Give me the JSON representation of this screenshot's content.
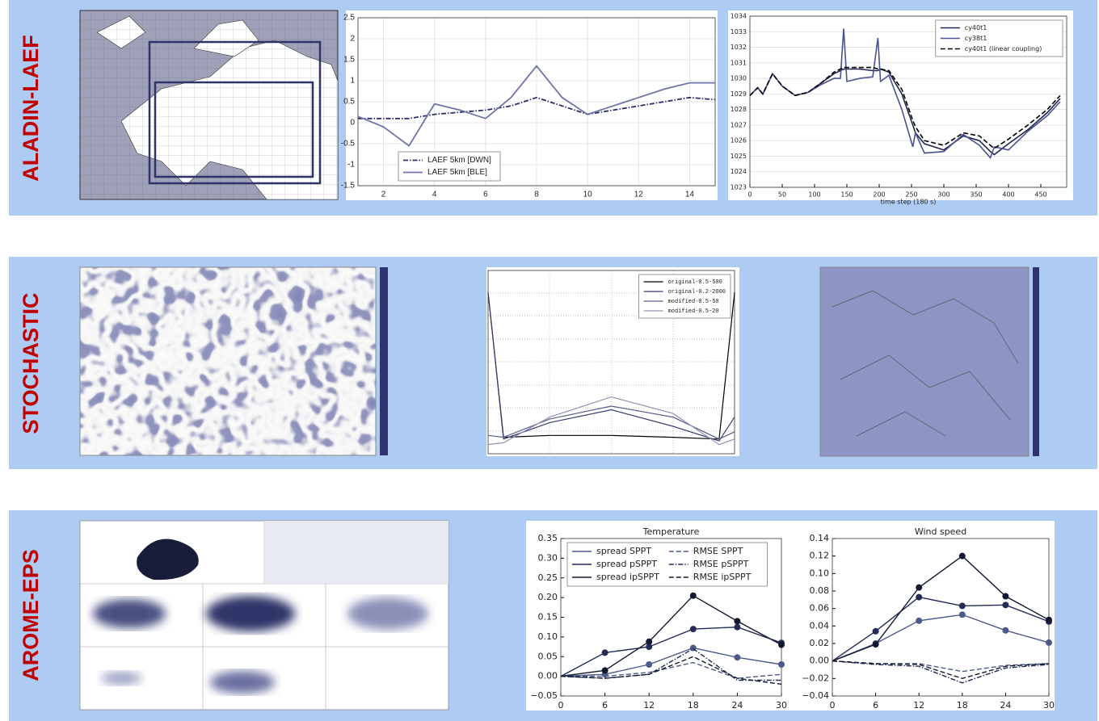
{
  "sections": [
    {
      "label": "ALADIN-LAEF"
    },
    {
      "label": "STOCHASTIC"
    },
    {
      "label": "AROME-EPS"
    }
  ],
  "chart_data": [
    {
      "type": "line",
      "x": [
        1,
        2,
        3,
        4,
        5,
        6,
        7,
        8,
        9,
        10,
        11,
        12,
        13,
        14,
        15
      ],
      "xlim": [
        1,
        15
      ],
      "xticks": [
        2,
        4,
        6,
        8,
        10,
        12,
        14
      ],
      "ylim": [
        -1.5,
        2.5
      ],
      "yticks": [
        -1.5,
        -1,
        -0.5,
        0,
        0.5,
        1,
        1.5,
        2,
        2.5
      ],
      "grid": true,
      "legend": "lower left",
      "series": [
        {
          "name": "LAEF 5km [DWN]",
          "color": "#2a2e6a",
          "dash": "dashdot",
          "values": [
            0.1,
            0.1,
            0.1,
            0.2,
            0.25,
            0.3,
            0.4,
            0.6,
            0.4,
            0.2,
            0.3,
            0.4,
            0.5,
            0.6,
            0.55
          ]
        },
        {
          "name": "LAEF 5km [BLE]",
          "color": "#6f75a8",
          "dash": "solid",
          "values": [
            0.15,
            -0.1,
            -0.55,
            0.45,
            0.3,
            0.1,
            0.6,
            1.35,
            0.6,
            0.2,
            0.4,
            0.6,
            0.8,
            0.95,
            0.95
          ]
        }
      ]
    },
    {
      "type": "line",
      "x": [
        0,
        12,
        20,
        35,
        50,
        70,
        90,
        110,
        130,
        140,
        145,
        150,
        170,
        190,
        198,
        202,
        215,
        235,
        252,
        256,
        270,
        300,
        330,
        355,
        372,
        378,
        400,
        430,
        460,
        480
      ],
      "xlim": [
        0,
        490
      ],
      "xticks": [
        0,
        50,
        100,
        150,
        200,
        250,
        300,
        350,
        400,
        450
      ],
      "ylim": [
        1023,
        1034
      ],
      "yticks": [
        1023,
        1024,
        1025,
        1026,
        1027,
        1028,
        1029,
        1030,
        1031,
        1032,
        1033,
        1034
      ],
      "grid": true,
      "legend": "upper right",
      "xlabel": "time step (180 s)",
      "series": [
        {
          "name": "cy40t1",
          "color": "#1f2550",
          "dash": "solid",
          "values": [
            1028.9,
            1029.4,
            1029.0,
            1030.3,
            1029.5,
            1028.9,
            1029.1,
            1029.7,
            1030.3,
            1030.5,
            1030.6,
            1030.6,
            1030.6,
            1030.5,
            1030.5,
            1030.6,
            1030.4,
            1029.0,
            1027.0,
            1026.5,
            1025.8,
            1025.4,
            1026.3,
            1026.0,
            1025.3,
            1025.1,
            1025.8,
            1026.7,
            1027.8,
            1028.7
          ]
        },
        {
          "name": "cy38t1",
          "color": "#4a5390",
          "dash": "solid",
          "values": [
            1028.9,
            1029.4,
            1029.0,
            1030.3,
            1029.5,
            1028.9,
            1029.1,
            1029.6,
            1030.0,
            1030.0,
            1033.2,
            1029.8,
            1030.0,
            1030.1,
            1032.6,
            1029.8,
            1030.2,
            1028.0,
            1025.6,
            1026.5,
            1025.2,
            1025.3,
            1026.4,
            1025.7,
            1024.9,
            1025.6,
            1025.4,
            1026.6,
            1027.6,
            1028.5
          ]
        },
        {
          "name": "cy40t1 (linear coupling)",
          "color": "#000000",
          "dash": "dashed",
          "values": [
            1028.9,
            1029.4,
            1029.0,
            1030.3,
            1029.5,
            1028.9,
            1029.1,
            1029.7,
            1030.4,
            1030.6,
            1030.7,
            1030.7,
            1030.7,
            1030.7,
            1030.6,
            1030.6,
            1030.5,
            1029.3,
            1027.3,
            1026.9,
            1026.0,
            1025.7,
            1026.5,
            1026.3,
            1025.7,
            1025.5,
            1026.1,
            1027.0,
            1028.0,
            1028.9
          ]
        }
      ]
    },
    {
      "type": "line",
      "x": [
        0,
        1,
        4,
        8,
        12,
        15,
        16
      ],
      "xlim": [
        0,
        16
      ],
      "ylim": [
        0,
        1
      ],
      "legend": "upper right",
      "series": [
        {
          "name": "original-0.5-500",
          "color": "#000000",
          "dash": "solid",
          "values": [
            0.88,
            0.09,
            0.1,
            0.1,
            0.09,
            0.08,
            0.88
          ]
        },
        {
          "name": "original-0.2-2000",
          "color": "#3a3f70",
          "dash": "solid",
          "values": [
            0.88,
            0.08,
            0.17,
            0.24,
            0.15,
            0.07,
            0.2
          ]
        },
        {
          "name": "modified-0.5-50",
          "color": "#5a5f8a",
          "dash": "solid",
          "values": [
            0.1,
            0.09,
            0.19,
            0.26,
            0.2,
            0.08,
            0.12
          ]
        },
        {
          "name": "modified-0.5-20",
          "color": "#9092b0",
          "dash": "solid",
          "values": [
            0.05,
            0.06,
            0.2,
            0.31,
            0.22,
            0.05,
            0.08
          ]
        }
      ]
    },
    {
      "type": "line",
      "title": "Temperature",
      "x": [
        0,
        6,
        12,
        18,
        24,
        30
      ],
      "xlim": [
        0,
        30
      ],
      "xticks": [
        0,
        6,
        12,
        18,
        24,
        30
      ],
      "ylim": [
        -0.05,
        0.35
      ],
      "yticks": [
        {
          "value": -0.05,
          "label": "−0.05"
        },
        {
          "value": 0,
          "label": "0.00"
        },
        {
          "value": 0.05,
          "label": "0.05"
        },
        {
          "value": 0.1,
          "label": "0.10"
        },
        {
          "value": 0.15,
          "label": "0.15"
        },
        {
          "value": 0.2,
          "label": "0.20"
        },
        {
          "value": 0.25,
          "label": "0.25"
        },
        {
          "value": 0.3,
          "label": "0.30"
        },
        {
          "value": 0.35,
          "label": "0.35"
        }
      ],
      "legend": "upper left",
      "series": [
        {
          "name": "spread SPPT",
          "color": "#4c5a8a",
          "dash": "solid",
          "marker": "o",
          "values": [
            0,
            0.005,
            0.03,
            0.072,
            0.048,
            0.03
          ]
        },
        {
          "name": "spread pSPPT",
          "color": "#222a55",
          "dash": "solid",
          "marker": "o",
          "values": [
            0,
            0.06,
            0.075,
            0.12,
            0.125,
            0.085
          ]
        },
        {
          "name": "spread ipSPPT",
          "color": "#121830",
          "dash": "solid",
          "marker": "o",
          "values": [
            0,
            0.015,
            0.088,
            0.205,
            0.14,
            0.08
          ]
        },
        {
          "name": "RMSE SPPT",
          "color": "#4c5a8a",
          "dash": "dashed",
          "values": [
            0,
            0,
            0.01,
            0.035,
            -0.005,
            0.005
          ]
        },
        {
          "name": "RMSE pSPPT",
          "color": "#222a55",
          "dash": "dashdot",
          "values": [
            0,
            -0.005,
            0.005,
            0.07,
            -0.01,
            -0.01
          ]
        },
        {
          "name": "RMSE ipSPPT",
          "color": "#121830",
          "dash": "dashed",
          "values": [
            0,
            -0.005,
            0.005,
            0.05,
            -0.005,
            -0.02
          ]
        }
      ]
    },
    {
      "type": "line",
      "title": "Wind speed",
      "x": [
        0,
        6,
        12,
        18,
        24,
        30
      ],
      "xlim": [
        0,
        30
      ],
      "xticks": [
        0,
        6,
        12,
        18,
        24,
        30
      ],
      "ylim": [
        -0.04,
        0.14
      ],
      "yticks": [
        {
          "value": -0.04,
          "label": "−0.04"
        },
        {
          "value": -0.02,
          "label": "−0.02"
        },
        {
          "value": 0,
          "label": "0.00"
        },
        {
          "value": 0.02,
          "label": "0.02"
        },
        {
          "value": 0.04,
          "label": "0.04"
        },
        {
          "value": 0.06,
          "label": "0.06"
        },
        {
          "value": 0.08,
          "label": "0.08"
        },
        {
          "value": 0.1,
          "label": "0.10"
        },
        {
          "value": 0.12,
          "label": "0.12"
        },
        {
          "value": 0.14,
          "label": "0.14"
        }
      ],
      "series": [
        {
          "color": "#4c5a8a",
          "dash": "solid",
          "marker": "o",
          "values": [
            0,
            0.02,
            0.046,
            0.053,
            0.035,
            0.021
          ]
        },
        {
          "color": "#222a55",
          "dash": "solid",
          "marker": "o",
          "values": [
            0,
            0.034,
            0.073,
            0.063,
            0.064,
            0.045
          ]
        },
        {
          "color": "#121830",
          "dash": "solid",
          "marker": "o",
          "values": [
            0,
            0.019,
            0.084,
            0.12,
            0.074,
            0.047
          ]
        },
        {
          "color": "#4c5a8a",
          "dash": "dashed",
          "values": [
            0,
            -0.003,
            -0.003,
            -0.012,
            -0.005,
            -0.003
          ]
        },
        {
          "color": "#222a55",
          "dash": "dashdot",
          "values": [
            0,
            -0.004,
            -0.006,
            -0.025,
            -0.008,
            -0.004
          ]
        },
        {
          "color": "#121830",
          "dash": "dashed",
          "values": [
            0,
            -0.003,
            -0.004,
            -0.02,
            -0.006,
            -0.003
          ]
        }
      ]
    }
  ]
}
